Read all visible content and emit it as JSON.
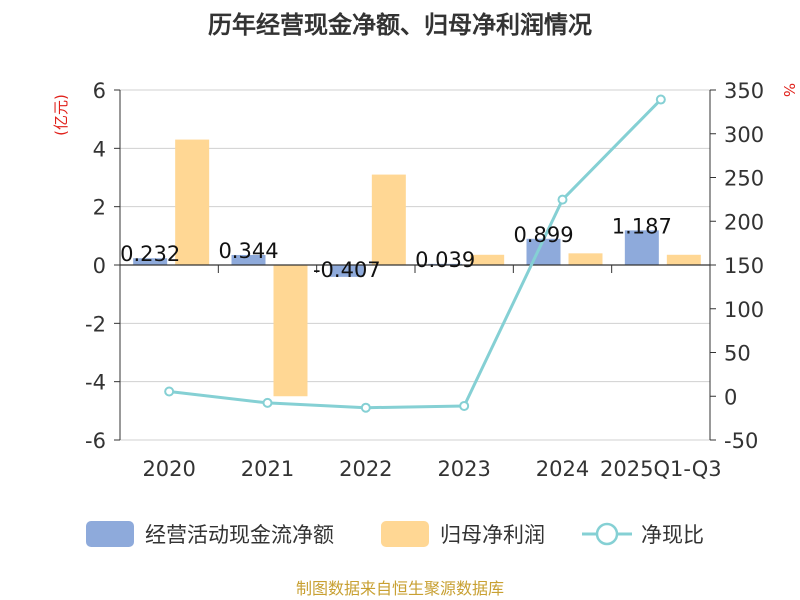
{
  "chart_data": {
    "type": "bar",
    "title": "历年经营现金净额、归母净利润情况",
    "categories": [
      "2020",
      "2021",
      "2022",
      "2023",
      "2024",
      "2025Q1-Q3"
    ],
    "series": [
      {
        "name": "经营活动现金流净额",
        "type": "bar",
        "axis": "left",
        "color": "#8eaadb",
        "values": [
          0.232,
          0.344,
          -0.407,
          0.039,
          0.899,
          1.187
        ],
        "labels": [
          "0.232",
          "0.344",
          "-0.407",
          "0.039",
          "0.899",
          "1.187"
        ]
      },
      {
        "name": "归母净利润",
        "type": "bar",
        "axis": "left",
        "color": "#ffd794",
        "values": [
          4.3,
          -4.5,
          3.1,
          0.35,
          0.4,
          0.35
        ]
      },
      {
        "name": "净现比",
        "type": "line",
        "axis": "right",
        "color": "#85d0d4",
        "values": [
          5.4,
          -7.6,
          -13.1,
          -11.1,
          224.7,
          339.1
        ]
      }
    ],
    "yleft": {
      "unit": "(亿元)",
      "min": -6,
      "max": 6,
      "ticks": [
        6,
        4,
        2,
        0,
        -2,
        -4,
        -6
      ]
    },
    "yright": {
      "unit": "%",
      "min": -50,
      "max": 350,
      "ticks": [
        350,
        300,
        250,
        200,
        150,
        100,
        50,
        0,
        -50
      ]
    },
    "legend_position": "bottom",
    "grid": true
  },
  "source": "制图数据来自恒生聚源数据库"
}
